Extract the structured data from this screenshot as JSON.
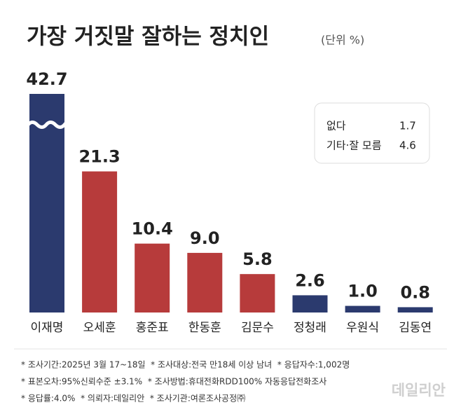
{
  "chart_data": {
    "type": "bar",
    "title": "가장 거짓말 잘하는 정치인",
    "subtitle": "(단위 %)",
    "categories": [
      "이재명",
      "오세훈",
      "홍준표",
      "한동훈",
      "김문수",
      "정청래",
      "우원식",
      "김동연"
    ],
    "values": [
      42.7,
      21.3,
      10.4,
      9.0,
      5.8,
      2.6,
      1.0,
      0.8
    ],
    "value_labels": [
      "42.7",
      "21.3",
      "10.4",
      "9.0",
      "5.8",
      "2.6",
      "1.0",
      "0.8"
    ],
    "colors": [
      "#2b3a6e",
      "#b73b3b",
      "#b73b3b",
      "#b73b3b",
      "#b73b3b",
      "#2b3a6e",
      "#2b3a6e",
      "#2b3a6e"
    ],
    "ylim": [
      0,
      33
    ],
    "axis_break": true,
    "others": [
      {
        "label": "없다",
        "value": 1.7,
        "value_label": "1.7"
      },
      {
        "label": "기타·잘 모름",
        "value": 4.6,
        "value_label": "4.6"
      }
    ],
    "notes": [
      "* 조사기간:2025년 3월 17~18일  * 조사대상:전국 만18세 이상 남녀  * 응답자수:1,002명",
      "* 표본오차:95%신뢰수준 ±3.1%  * 조사방법:휴대전화RDD100% 자동응답전화조사",
      "* 응답률:4.0%  * 의뢰자:데일리안  * 조사기관:여론조사공정㈜"
    ],
    "watermark": "데일리안"
  }
}
